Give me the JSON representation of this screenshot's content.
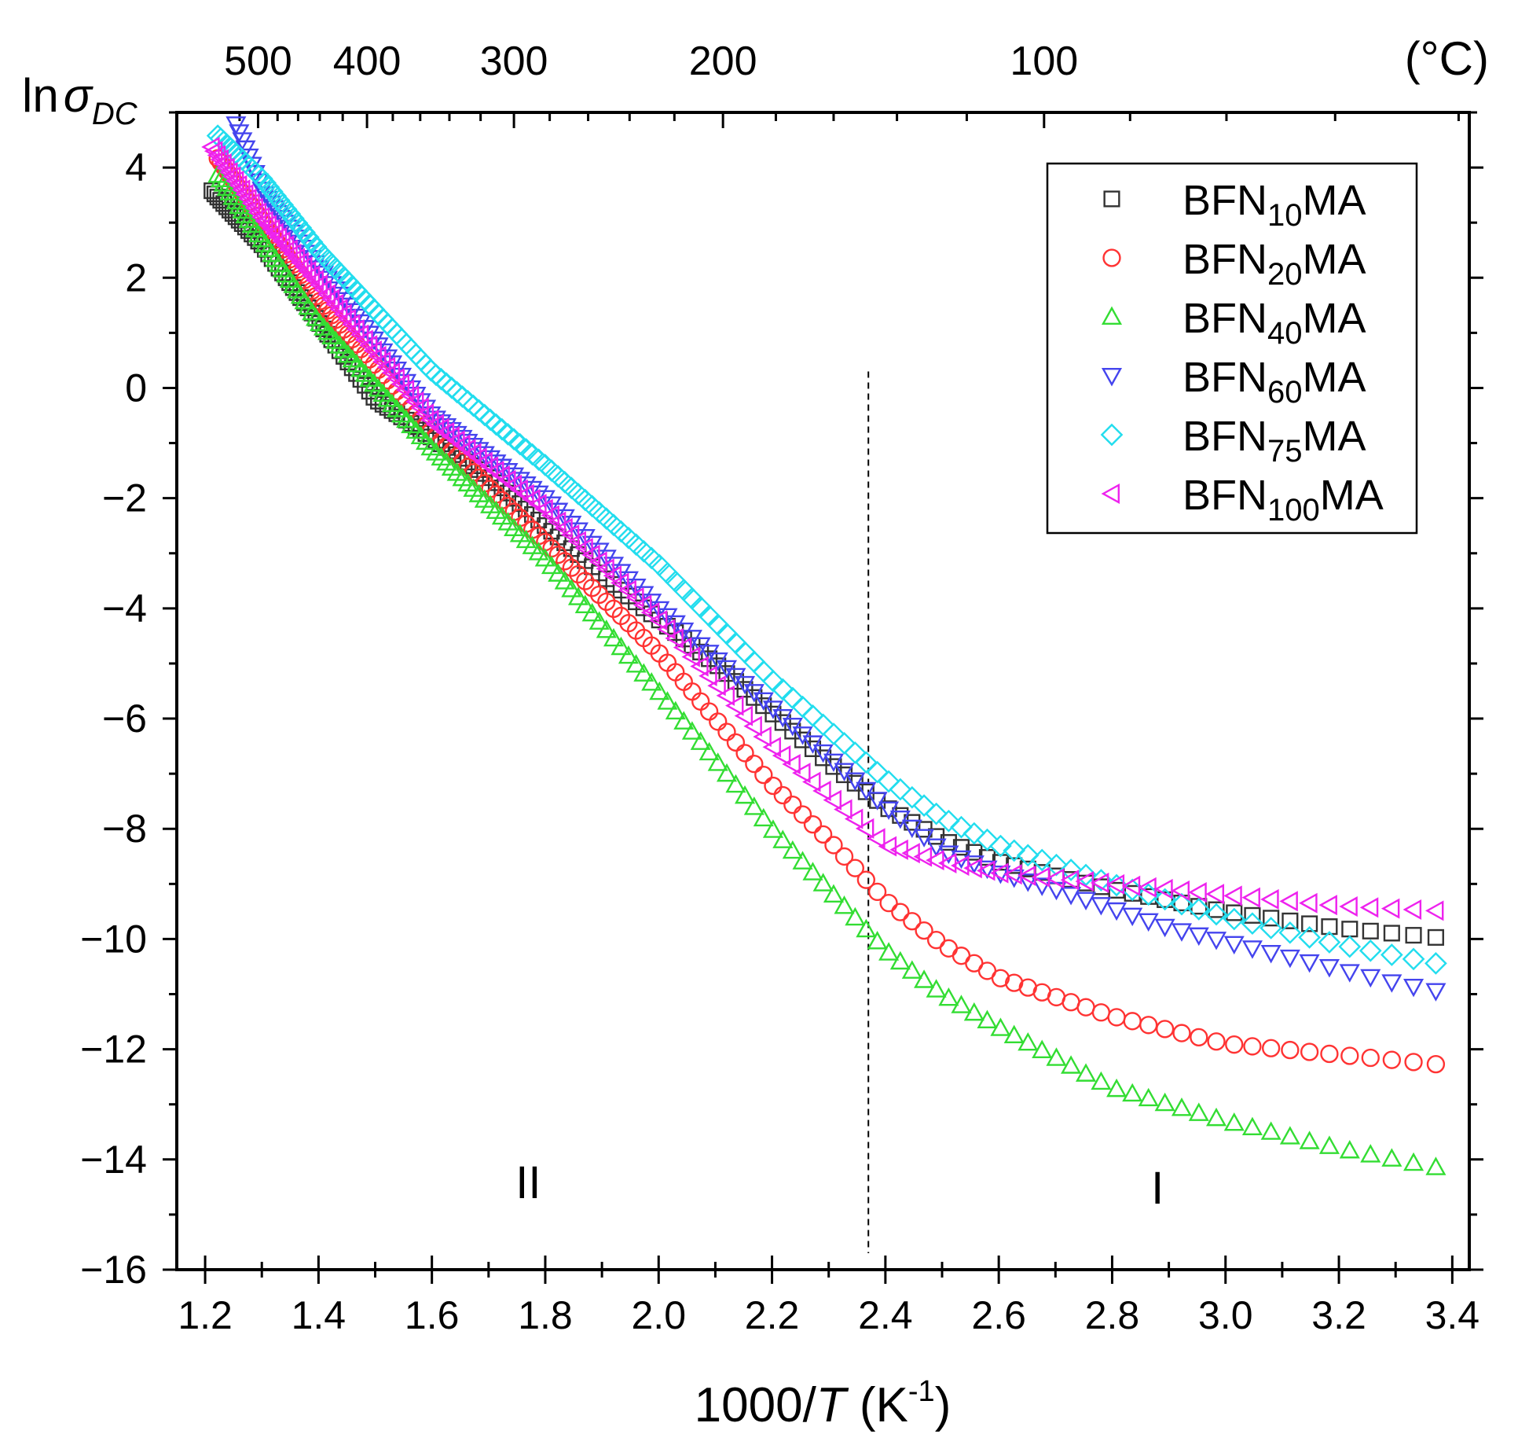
{
  "chart_data": {
    "type": "scatter",
    "title": "",
    "xlabel": {
      "prefix": "1000/",
      "italic": "T",
      "unit_open": " (K",
      "unit_sup": "-1",
      "unit_close": ")"
    },
    "ylabel": {
      "prefix": "ln",
      "symbol": "σ",
      "subscript": "DC"
    },
    "xlim": [
      1.15,
      3.43
    ],
    "ylim": [
      -16,
      5
    ],
    "x_ticks": [
      {
        "v": 1.2,
        "label": "1.2"
      },
      {
        "v": 1.4,
        "label": "1.4"
      },
      {
        "v": 1.6,
        "label": "1.6"
      },
      {
        "v": 1.8,
        "label": "1.8"
      },
      {
        "v": 2.0,
        "label": "2.0"
      },
      {
        "v": 2.2,
        "label": "2.2"
      },
      {
        "v": 2.4,
        "label": "2.4"
      },
      {
        "v": 2.6,
        "label": "2.6"
      },
      {
        "v": 2.8,
        "label": "2.8"
      },
      {
        "v": 3.0,
        "label": "3.0"
      },
      {
        "v": 3.2,
        "label": "3.2"
      },
      {
        "v": 3.4,
        "label": "3.4"
      }
    ],
    "y_ticks": [
      {
        "v": 4,
        "label": "4"
      },
      {
        "v": 2,
        "label": "2"
      },
      {
        "v": 0,
        "label": "0"
      },
      {
        "v": -2,
        "label": "-2"
      },
      {
        "v": -4,
        "label": "-4"
      },
      {
        "v": -6,
        "label": "-6"
      },
      {
        "v": -8,
        "label": "-8"
      },
      {
        "v": -10,
        "label": "-10"
      },
      {
        "v": -12,
        "label": "-12"
      },
      {
        "v": -14,
        "label": "-14"
      },
      {
        "v": -16,
        "label": "-16"
      }
    ],
    "top_axis": {
      "unit": "(°C)",
      "ticks": [
        {
          "c": 500,
          "label": "500"
        },
        {
          "c": 400,
          "label": "400"
        },
        {
          "c": 300,
          "label": "300"
        },
        {
          "c": 200,
          "label": "200"
        },
        {
          "c": 100,
          "label": "100"
        }
      ]
    },
    "divider_x": 2.37,
    "regions": [
      {
        "label": "II",
        "x": 1.77,
        "y": -14.7
      },
      {
        "label": "I",
        "x": 2.88,
        "y": -14.8
      }
    ],
    "series": [
      {
        "name_base": "BFN",
        "name_sub": "10",
        "name_suffix": "MA",
        "marker": "square",
        "color": "#333333",
        "key_points": [
          [
            1.21,
            3.6
          ],
          [
            1.3,
            2.6
          ],
          [
            1.5,
            -0.2
          ],
          [
            1.7,
            -1.6
          ],
          [
            1.9,
            -3.4
          ],
          [
            2.1,
            -5.0
          ],
          [
            2.3,
            -6.8
          ],
          [
            2.4,
            -7.6
          ],
          [
            2.5,
            -8.2
          ],
          [
            2.6,
            -8.6
          ],
          [
            2.8,
            -9.1
          ],
          [
            3.0,
            -9.5
          ],
          [
            3.2,
            -9.8
          ],
          [
            3.4,
            -10.0
          ]
        ]
      },
      {
        "name_base": "BFN",
        "name_sub": "20",
        "name_suffix": "MA",
        "marker": "circle",
        "color": "#ff3333",
        "key_points": [
          [
            1.22,
            4.2
          ],
          [
            1.4,
            1.6
          ],
          [
            1.6,
            -0.8
          ],
          [
            1.8,
            -2.8
          ],
          [
            2.0,
            -4.8
          ],
          [
            2.2,
            -7.2
          ],
          [
            2.3,
            -8.2
          ],
          [
            2.4,
            -9.3
          ],
          [
            2.5,
            -10.1
          ],
          [
            2.6,
            -10.7
          ],
          [
            2.8,
            -11.4
          ],
          [
            3.0,
            -11.9
          ],
          [
            3.2,
            -12.1
          ],
          [
            3.4,
            -12.3
          ]
        ]
      },
      {
        "name_base": "BFN",
        "name_sub": "40",
        "name_suffix": "MA",
        "marker": "triangle-up",
        "color": "#33dd33",
        "key_points": [
          [
            1.22,
            3.9
          ],
          [
            1.4,
            1.2
          ],
          [
            1.6,
            -1.1
          ],
          [
            1.8,
            -3.1
          ],
          [
            2.0,
            -5.5
          ],
          [
            2.2,
            -8.0
          ],
          [
            2.4,
            -10.2
          ],
          [
            2.5,
            -11.0
          ],
          [
            2.6,
            -11.6
          ],
          [
            2.8,
            -12.7
          ],
          [
            3.0,
            -13.3
          ],
          [
            3.2,
            -13.8
          ],
          [
            3.4,
            -14.2
          ]
        ]
      },
      {
        "name_base": "BFN",
        "name_sub": "60",
        "name_suffix": "MA",
        "marker": "triangle-down",
        "color": "#4444ee",
        "key_points": [
          [
            1.25,
            4.9
          ],
          [
            1.3,
            3.6
          ],
          [
            1.4,
            2.2
          ],
          [
            1.6,
            -0.5
          ],
          [
            1.8,
            -2.0
          ],
          [
            2.0,
            -4.0
          ],
          [
            2.2,
            -5.8
          ],
          [
            2.4,
            -7.6
          ],
          [
            2.5,
            -8.4
          ],
          [
            2.6,
            -8.8
          ],
          [
            2.7,
            -9.1
          ],
          [
            2.9,
            -9.8
          ],
          [
            3.1,
            -10.3
          ],
          [
            3.3,
            -10.8
          ],
          [
            3.4,
            -11.0
          ]
        ]
      },
      {
        "name_base": "BFN",
        "name_sub": "75",
        "name_suffix": "MA",
        "marker": "diamond",
        "color": "#22ddee",
        "key_points": [
          [
            1.22,
            4.6
          ],
          [
            1.3,
            3.8
          ],
          [
            1.4,
            2.5
          ],
          [
            1.6,
            0.3
          ],
          [
            1.8,
            -1.4
          ],
          [
            2.0,
            -3.2
          ],
          [
            2.2,
            -5.3
          ],
          [
            2.4,
            -7.1
          ],
          [
            2.5,
            -7.8
          ],
          [
            2.6,
            -8.3
          ],
          [
            2.8,
            -9.0
          ],
          [
            3.0,
            -9.6
          ],
          [
            3.2,
            -10.1
          ],
          [
            3.4,
            -10.5
          ]
        ]
      },
      {
        "name_base": "BFN",
        "name_sub": "100",
        "name_suffix": "MA",
        "marker": "triangle-left",
        "color": "#ee22ee",
        "key_points": [
          [
            1.21,
            4.4
          ],
          [
            1.3,
            3.1
          ],
          [
            1.4,
            1.9
          ],
          [
            1.6,
            -0.6
          ],
          [
            1.8,
            -2.2
          ],
          [
            2.0,
            -4.2
          ],
          [
            2.2,
            -6.5
          ],
          [
            2.4,
            -8.3
          ],
          [
            2.5,
            -8.6
          ],
          [
            2.6,
            -8.8
          ],
          [
            2.8,
            -9.0
          ],
          [
            3.0,
            -9.2
          ],
          [
            3.2,
            -9.4
          ],
          [
            3.4,
            -9.5
          ]
        ]
      }
    ],
    "legend_position": "top-right"
  }
}
